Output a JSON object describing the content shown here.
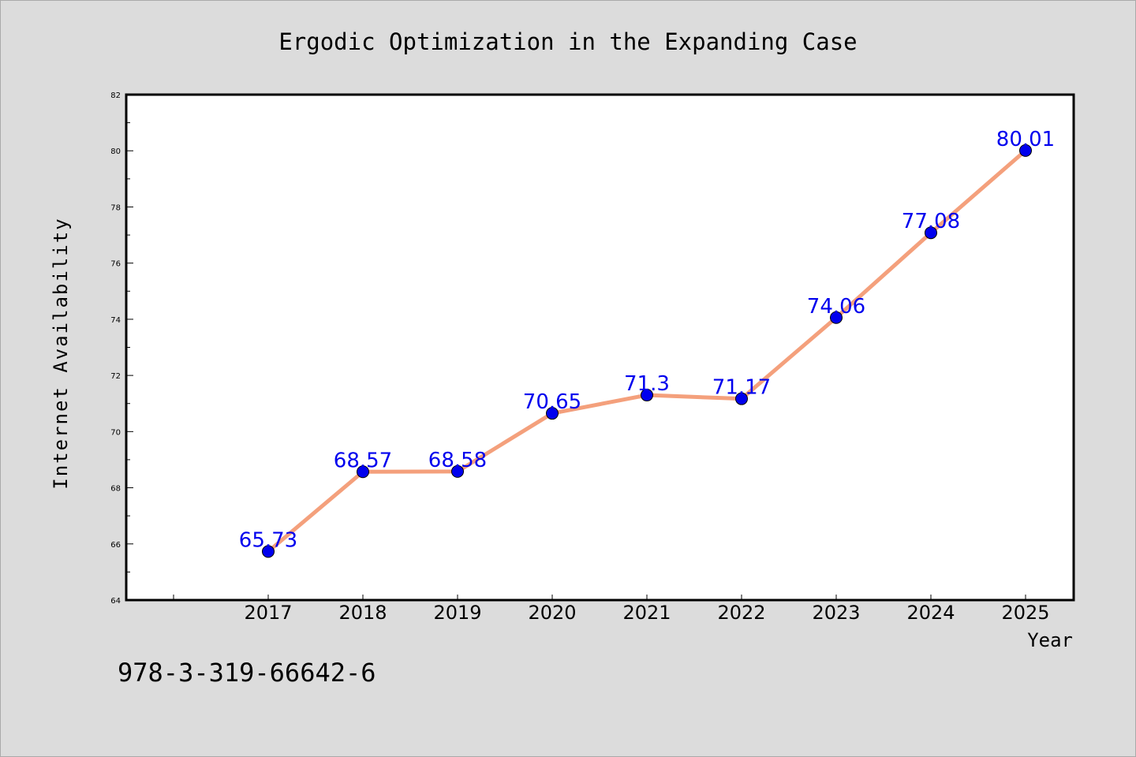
{
  "chart_data": {
    "type": "line",
    "title": "Ergodic Optimization in the Expanding Case",
    "xlabel": "Year",
    "ylabel": "Internet Availability",
    "categories": [
      "2017",
      "2018",
      "2019",
      "2020",
      "2021",
      "2022",
      "2023",
      "2024",
      "2025"
    ],
    "series": [
      {
        "values": [
          65.73,
          68.57,
          68.58,
          70.65,
          71.3,
          71.17,
          74.06,
          77.08,
          80.01
        ]
      }
    ],
    "data_labels": [
      "65.73",
      "68.57",
      "68.58",
      "70.65",
      "71.3",
      "71.17",
      "74.06",
      "77.08",
      "80.01"
    ],
    "yticks": [
      64,
      66,
      68,
      70,
      72,
      74,
      76,
      78,
      80,
      82
    ],
    "ylim": [
      64,
      82
    ],
    "grid": false,
    "line_color": "#f4a07c",
    "marker_color": "#0000ee",
    "label_color": "#0000ee"
  },
  "footer_text": "978-3-319-66642-6"
}
